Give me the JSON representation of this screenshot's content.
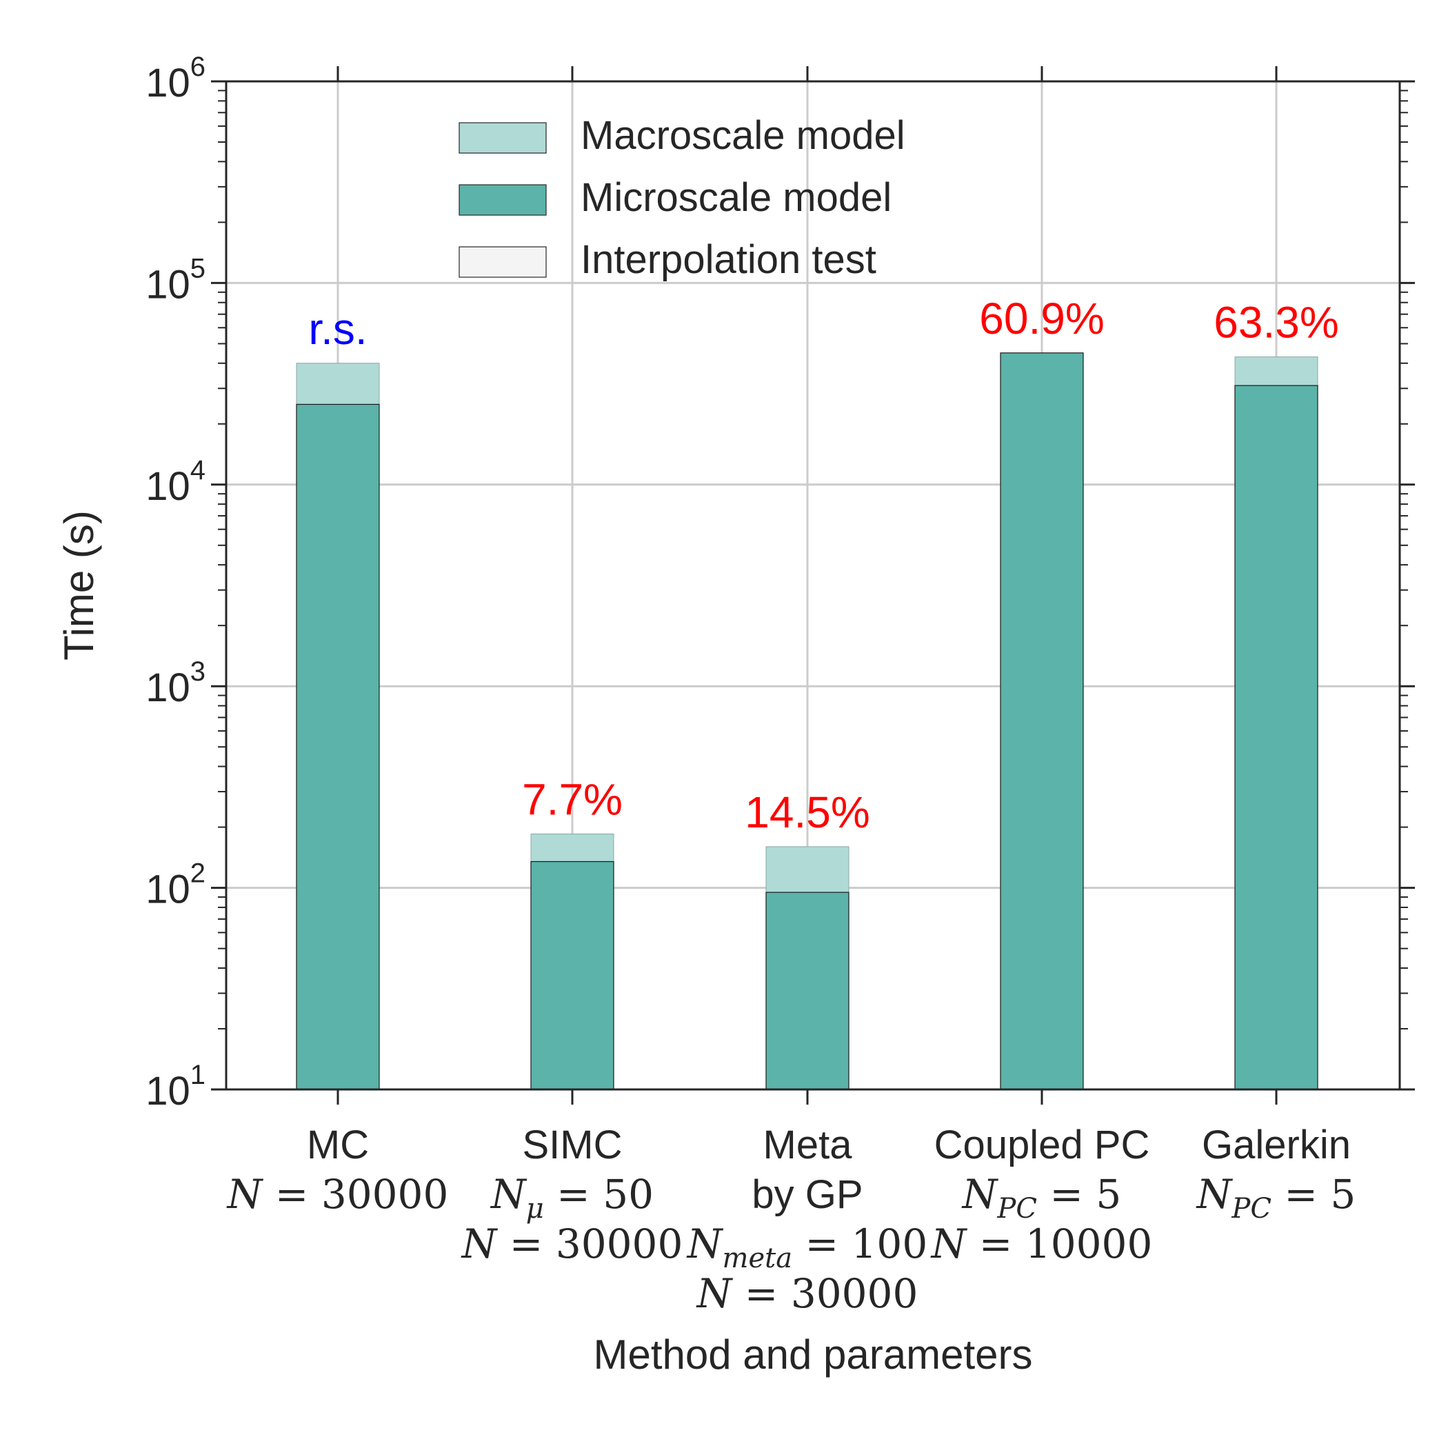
{
  "chart_data": {
    "type": "bar",
    "stacked": true,
    "yscale": "log",
    "ylim": [
      10,
      1000000
    ],
    "ylabel": "Time (s)",
    "xlabel": "Method and parameters",
    "y_ticks": [
      {
        "value": 10,
        "base": "10",
        "exp": "1"
      },
      {
        "value": 100,
        "base": "10",
        "exp": "2"
      },
      {
        "value": 1000,
        "base": "10",
        "exp": "3"
      },
      {
        "value": 10000,
        "base": "10",
        "exp": "4"
      },
      {
        "value": 100000,
        "base": "10",
        "exp": "5"
      },
      {
        "value": 1000000,
        "base": "10",
        "exp": "6"
      }
    ],
    "legend": {
      "position": "top-center",
      "entries": [
        {
          "label": "Macroscale model",
          "color": "#b0dad6"
        },
        {
          "label": "Microscale model",
          "color": "#5bb3a9"
        },
        {
          "label": "Interpolation test",
          "color": "#f4f4f4"
        }
      ]
    },
    "categories": [
      {
        "name": "MC",
        "params": [
          {
            "parts": [
              {
                "t": "N",
                "m": "it"
              },
              {
                "t": " = 30000",
                "m": "rm"
              }
            ]
          }
        ],
        "microscale": 25000,
        "macroscale_top": 40000,
        "annotation": "r.s.",
        "annotation_color": "#0000ff"
      },
      {
        "name": "SIMC",
        "params": [
          {
            "parts": [
              {
                "t": "N",
                "m": "it"
              },
              {
                "t": "μ",
                "m": "sub"
              },
              {
                "t": " = 50",
                "m": "rm"
              }
            ]
          },
          {
            "parts": [
              {
                "t": "N",
                "m": "it"
              },
              {
                "t": " = 30000",
                "m": "rm"
              }
            ]
          }
        ],
        "microscale": 135,
        "macroscale_top": 185,
        "annotation": "7.7%",
        "annotation_color": "#ff0000"
      },
      {
        "name": "Meta\nby GP",
        "params": [
          {
            "parts": [
              {
                "t": "N",
                "m": "it"
              },
              {
                "t": "meta",
                "m": "sub"
              },
              {
                "t": " = 100",
                "m": "rm"
              }
            ]
          },
          {
            "parts": [
              {
                "t": "N",
                "m": "it"
              },
              {
                "t": " = 30000",
                "m": "rm"
              }
            ]
          }
        ],
        "microscale": 95,
        "macroscale_top": 160,
        "annotation": "14.5%",
        "annotation_color": "#ff0000"
      },
      {
        "name": "Coupled PC",
        "params": [
          {
            "parts": [
              {
                "t": "N",
                "m": "it"
              },
              {
                "t": "PC",
                "m": "sub"
              },
              {
                "t": " = 5",
                "m": "rm"
              }
            ]
          },
          {
            "parts": [
              {
                "t": "N",
                "m": "it"
              },
              {
                "t": " = 10000",
                "m": "rm"
              }
            ]
          }
        ],
        "microscale": 45000,
        "macroscale_top": 45000,
        "annotation": "60.9%",
        "annotation_color": "#ff0000"
      },
      {
        "name": "Galerkin",
        "params": [
          {
            "parts": [
              {
                "t": "N",
                "m": "it"
              },
              {
                "t": "PC",
                "m": "sub"
              },
              {
                "t": " = 5",
                "m": "rm"
              }
            ]
          }
        ],
        "microscale": 31000,
        "macroscale_top": 43000,
        "annotation": "63.3%",
        "annotation_color": "#ff0000"
      }
    ],
    "grid": true
  }
}
